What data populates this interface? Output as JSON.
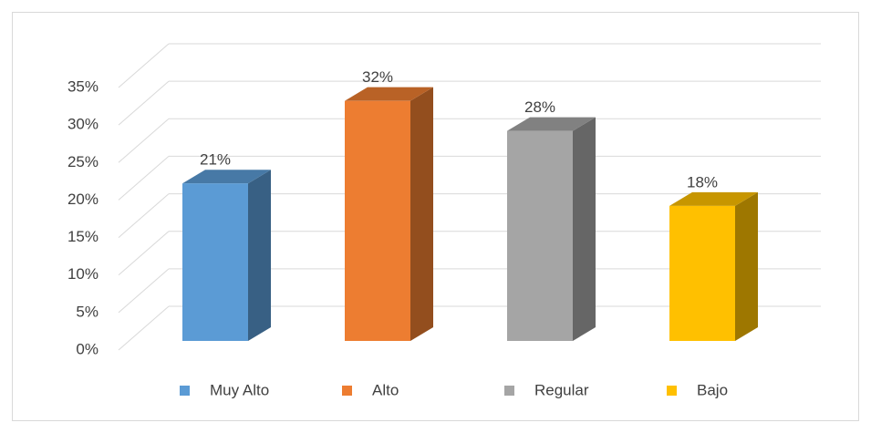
{
  "chart_data": {
    "type": "bar3d",
    "categories": [
      "Muy Alto",
      "Alto",
      "Regular",
      "Bajo"
    ],
    "values": [
      21,
      32,
      28,
      18
    ],
    "value_labels": [
      "21%",
      "32%",
      "28%",
      "18%"
    ],
    "colors": [
      "#5b9bd5",
      "#ed7d31",
      "#a5a5a5",
      "#ffc000"
    ],
    "ylim": [
      0,
      35
    ],
    "yticks": [
      {
        "value": 0,
        "label": "0%"
      },
      {
        "value": 5,
        "label": "5%"
      },
      {
        "value": 10,
        "label": "10%"
      },
      {
        "value": 15,
        "label": "15%"
      },
      {
        "value": 20,
        "label": "20%"
      },
      {
        "value": 25,
        "label": "25%"
      },
      {
        "value": 30,
        "label": "30%"
      },
      {
        "value": 35,
        "label": "35%"
      }
    ],
    "grid": true,
    "legend": "bottom"
  }
}
